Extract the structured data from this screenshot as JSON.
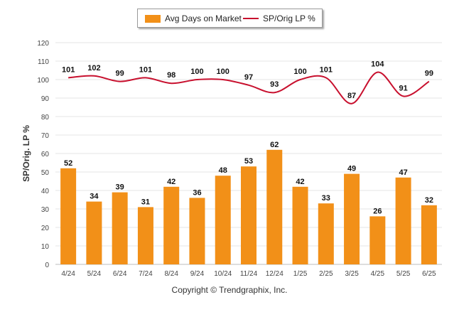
{
  "legend": {
    "bar_label": "Avg Days on Market",
    "line_label": "SP/Orig LP %"
  },
  "footer": "Copyright © Trendgraphix, Inc.",
  "chart_data": {
    "type": "bar",
    "ylabel": "SP/Orig. LP %",
    "xlabel": "",
    "title": "",
    "ylim": [
      0,
      120
    ],
    "yticks": [
      0,
      10,
      20,
      30,
      40,
      50,
      60,
      70,
      80,
      90,
      100,
      110,
      120
    ],
    "grid": true,
    "legend_position": "top-center",
    "categories": [
      "4/24",
      "5/24",
      "6/24",
      "7/24",
      "8/24",
      "9/24",
      "10/24",
      "11/24",
      "12/24",
      "1/25",
      "2/25",
      "3/25",
      "4/25",
      "5/25",
      "6/25"
    ],
    "series": [
      {
        "name": "Avg Days on Market",
        "type": "bar",
        "color": "#F29018",
        "values": [
          52,
          34,
          39,
          31,
          42,
          36,
          48,
          53,
          62,
          42,
          33,
          49,
          26,
          47,
          32
        ]
      },
      {
        "name": "SP/Orig LP %",
        "type": "line",
        "color": "#C8102E",
        "values": [
          101,
          102,
          99,
          101,
          98,
          100,
          100,
          97,
          93,
          100,
          101,
          87,
          104,
          91,
          99
        ]
      }
    ]
  }
}
